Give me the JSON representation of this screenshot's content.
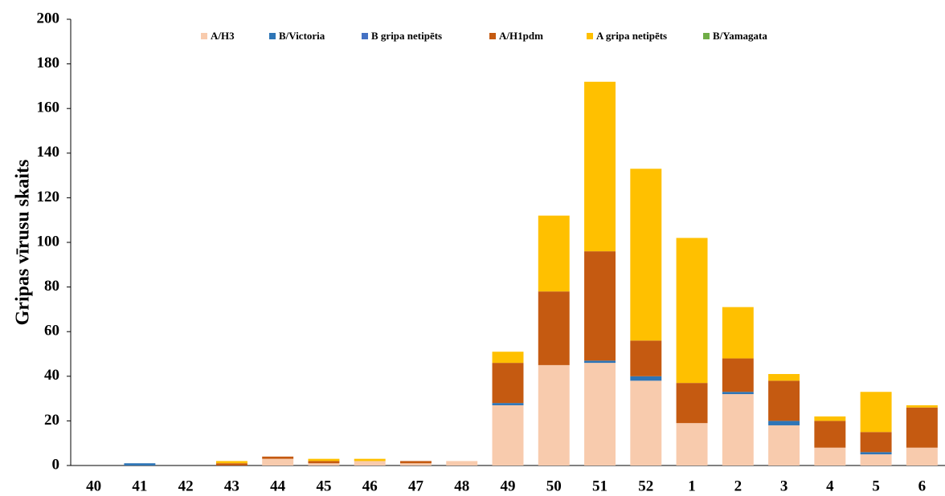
{
  "chart_data": {
    "type": "stacked_bar",
    "y_label": "Gripas vīrusu skaits",
    "categories": [
      "40",
      "41",
      "42",
      "43",
      "44",
      "45",
      "46",
      "47",
      "48",
      "49",
      "50",
      "51",
      "52",
      "1",
      "2",
      "3",
      "4",
      "5",
      "6"
    ],
    "series": [
      {
        "name": "A/H3",
        "color": "#f8cbad",
        "values": [
          0,
          0,
          0,
          0,
          3,
          1,
          2,
          1,
          2,
          27,
          45,
          46,
          38,
          19,
          32,
          18,
          8,
          5,
          8
        ]
      },
      {
        "name": "B/Victoria",
        "color": "#2e75b6",
        "values": [
          0,
          1,
          0,
          0,
          0,
          0,
          0,
          0,
          0,
          1,
          0,
          1,
          2,
          0,
          1,
          2,
          0,
          1,
          0
        ]
      },
      {
        "name": "B gripa netipēts",
        "color": "#4472c4",
        "values": [
          0,
          0,
          0,
          0,
          0,
          0,
          0,
          0,
          0,
          0,
          0,
          0,
          0,
          0,
          0,
          0,
          0,
          0,
          0
        ]
      },
      {
        "name": "A/H1pdm",
        "color": "#c55a11",
        "values": [
          0,
          0,
          0,
          1,
          1,
          1,
          0,
          1,
          0,
          18,
          33,
          49,
          16,
          18,
          15,
          18,
          12,
          9,
          18
        ]
      },
      {
        "name": "A gripa netipēts",
        "color": "#ffc000",
        "values": [
          0,
          0,
          0,
          1,
          0,
          1,
          1,
          0,
          0,
          5,
          34,
          76,
          77,
          65,
          23,
          3,
          2,
          18,
          1
        ]
      },
      {
        "name": "B/Yamagata",
        "color": "#70ad47",
        "values": [
          0,
          0,
          0,
          0,
          0,
          0,
          0,
          0,
          0,
          0,
          0,
          0,
          0,
          0,
          0,
          0,
          0,
          0,
          0
        ]
      }
    ],
    "ylim": [
      0,
      200
    ],
    "yticks": [
      0,
      20,
      40,
      60,
      80,
      100,
      120,
      140,
      160,
      180,
      200
    ],
    "grid": false,
    "legend": "top"
  }
}
